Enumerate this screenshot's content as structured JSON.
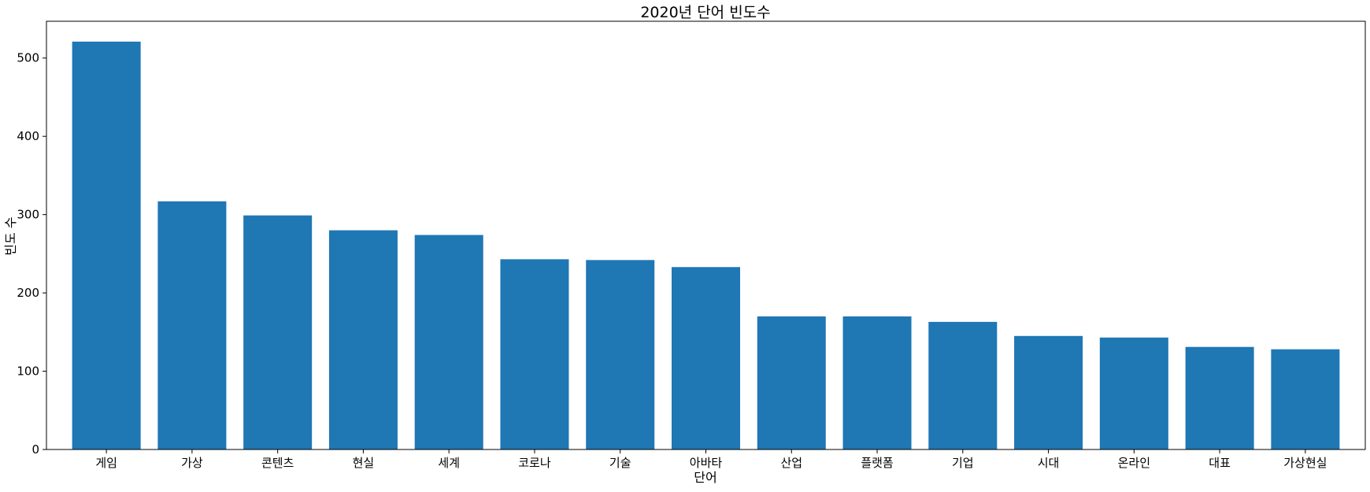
{
  "chart_data": {
    "type": "bar",
    "title": "2020년 단어 빈도수",
    "xlabel": "단어",
    "ylabel": "빈도 수",
    "categories": [
      "게임",
      "가상",
      "콘텐츠",
      "현실",
      "세계",
      "코로나",
      "기술",
      "아바타",
      "산업",
      "플랫폼",
      "기업",
      "시대",
      "온라인",
      "대표",
      "가상현실"
    ],
    "values": [
      521,
      317,
      299,
      280,
      274,
      243,
      242,
      233,
      170,
      170,
      163,
      145,
      143,
      131,
      128
    ],
    "ylim": [
      0,
      547
    ],
    "yticks": [
      0,
      100,
      200,
      300,
      400,
      500
    ],
    "grid": false,
    "bar_color": "#1f77b4"
  }
}
